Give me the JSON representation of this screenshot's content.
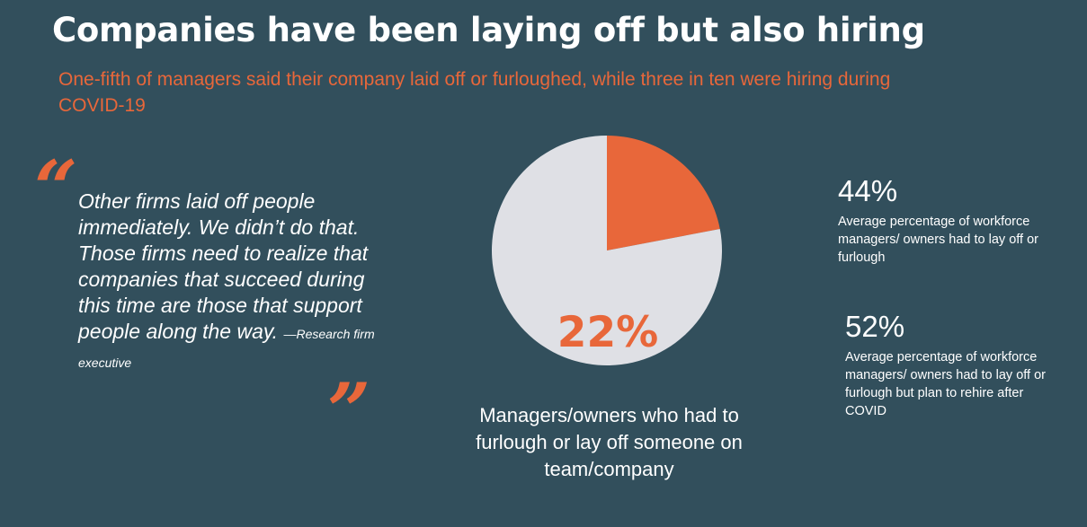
{
  "header": {
    "title": "Companies have been laying off but also hiring",
    "subtitle": "One-fifth of managers said their company laid off or furloughed, while three in ten were hiring during COVID-19"
  },
  "quote": {
    "open_mark": "“",
    "close_mark": "”",
    "text": "Other firms laid off people immediately.  We didn’t do that. Those firms need to realize that companies that succeed during this time are those that support people along the way.",
    "attribution": "—Research firm executive"
  },
  "chart_data": {
    "type": "pie",
    "title": "",
    "slices": [
      {
        "label": "Managers/owners who had to furlough or lay off someone on team/company",
        "value": 22,
        "color": "#e8673a"
      },
      {
        "label": "",
        "value": 78,
        "color": "#dfe0e5"
      }
    ],
    "value_label": "22%",
    "caption": "Managers/owners who had to furlough or lay off someone on team/company"
  },
  "stats": [
    {
      "value": "44%",
      "description": "Average percentage of workforce managers/ owners had to lay off or furlough"
    },
    {
      "value": "52%",
      "description": "Average percentage of workforce managers/ owners had to lay off or furlough but plan to rehire after COVID"
    }
  ],
  "colors": {
    "background": "#324f5c",
    "accent": "#e8673a",
    "pie_remainder": "#dfe0e5",
    "text": "#ffffff"
  }
}
